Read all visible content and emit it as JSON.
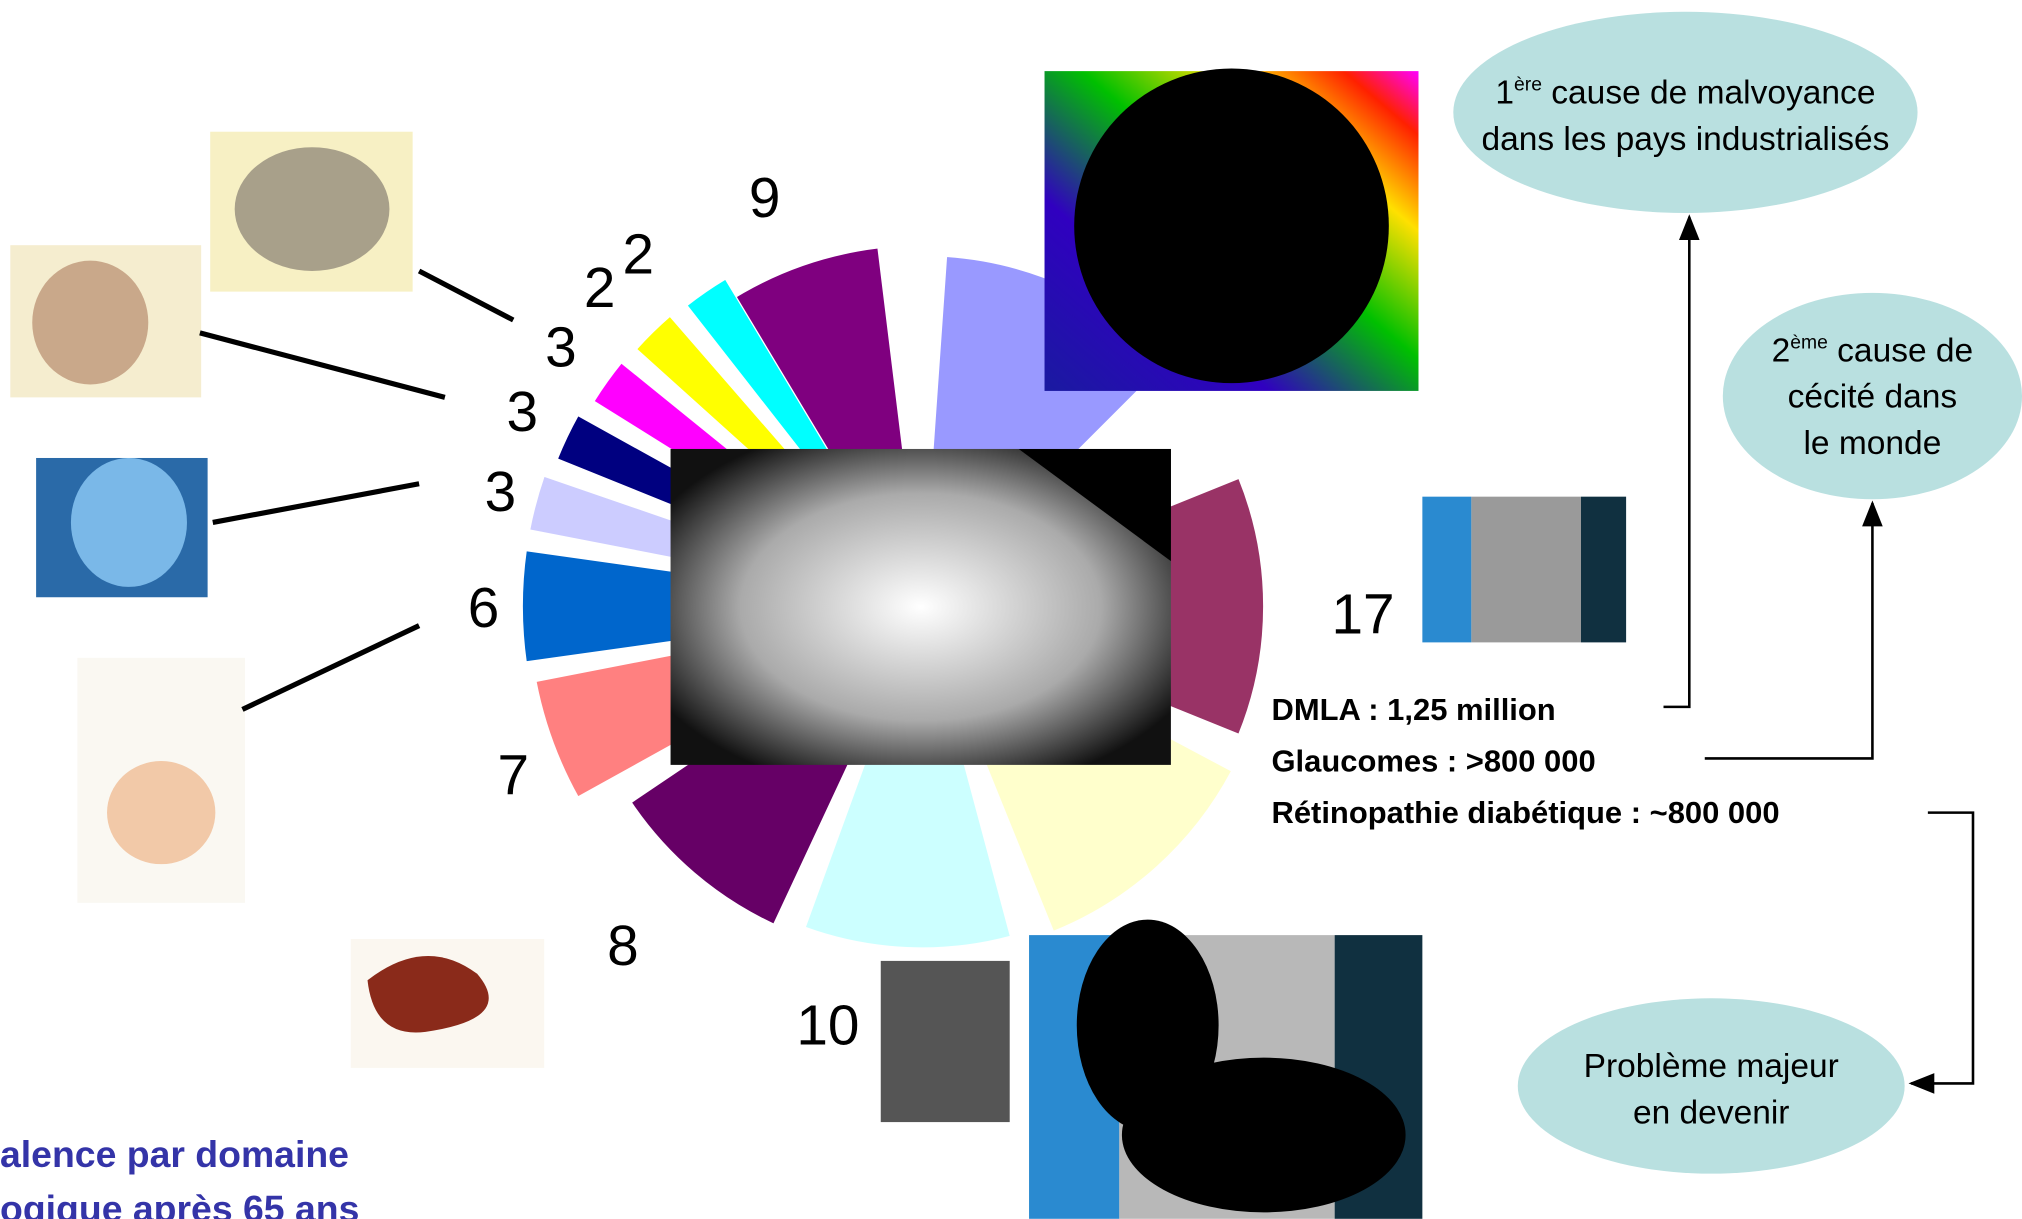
{
  "sector_labels": [
    "9",
    "2",
    "2",
    "3",
    "3",
    "3",
    "6",
    "7",
    "8",
    "10",
    "17"
  ],
  "bubbles": [
    {
      "lines": [
        {
          "ordinal": "1",
          "suffix": "ère",
          "rest": " cause de malvoyance"
        },
        {
          "text": "dans les pays industrialisés"
        }
      ]
    },
    {
      "lines": [
        {
          "ordinal": "2",
          "suffix": "ème",
          "rest": " cause de"
        },
        {
          "text": "cécité dans"
        },
        {
          "text": "le monde"
        }
      ]
    },
    {
      "lines": [
        {
          "text": "Problème majeur"
        },
        {
          "text": "en devenir"
        }
      ]
    }
  ],
  "stats": [
    "DMLA : 1,25 million",
    "Glaucomes : >800 000",
    "Rétinopathie diabétique : ~800 000"
  ],
  "caption": [
    "alence par domaine",
    "ogique après 65 ans"
  ]
}
